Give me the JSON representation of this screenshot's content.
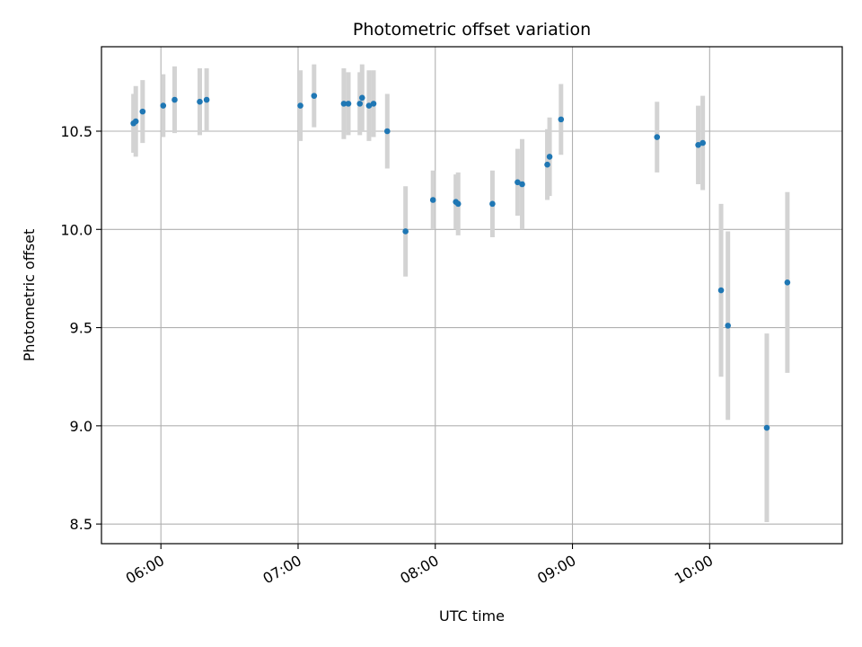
{
  "chart_data": {
    "type": "scatter",
    "title": "Photometric offset variation",
    "xlabel": "UTC time",
    "ylabel": "Photometric offset",
    "x_unit": "UTC time (HH:MM)",
    "xlim": [
      "05:34",
      "10:58"
    ],
    "ylim": [
      8.4,
      10.93
    ],
    "x_ticks": [
      "06:00",
      "07:00",
      "08:00",
      "09:00",
      "10:00"
    ],
    "y_ticks": [
      8.5,
      9.0,
      9.5,
      10.0,
      10.5
    ],
    "grid": true,
    "colors": {
      "marker": "#1f77b4",
      "errorbar": "#d3d3d3",
      "grid": "#b0b0b0"
    },
    "series": [
      {
        "points": [
          {
            "x": "05:48",
            "y": 10.54,
            "err": 0.15
          },
          {
            "x": "05:49",
            "y": 10.55,
            "err": 0.18
          },
          {
            "x": "05:52",
            "y": 10.6,
            "err": 0.16
          },
          {
            "x": "06:01",
            "y": 10.63,
            "err": 0.16
          },
          {
            "x": "06:06",
            "y": 10.66,
            "err": 0.17
          },
          {
            "x": "06:17",
            "y": 10.65,
            "err": 0.17
          },
          {
            "x": "06:20",
            "y": 10.66,
            "err": 0.16
          },
          {
            "x": "07:01",
            "y": 10.63,
            "err": 0.18
          },
          {
            "x": "07:07",
            "y": 10.68,
            "err": 0.16
          },
          {
            "x": "07:20",
            "y": 10.64,
            "err": 0.18
          },
          {
            "x": "07:22",
            "y": 10.64,
            "err": 0.16
          },
          {
            "x": "07:27",
            "y": 10.64,
            "err": 0.16
          },
          {
            "x": "07:28",
            "y": 10.67,
            "err": 0.17
          },
          {
            "x": "07:31",
            "y": 10.63,
            "err": 0.18
          },
          {
            "x": "07:33",
            "y": 10.64,
            "err": 0.17
          },
          {
            "x": "07:39",
            "y": 10.5,
            "err": 0.19
          },
          {
            "x": "07:47",
            "y": 9.99,
            "err": 0.23
          },
          {
            "x": "07:59",
            "y": 10.15,
            "err": 0.15
          },
          {
            "x": "08:09",
            "y": 10.14,
            "err": 0.14
          },
          {
            "x": "08:10",
            "y": 10.13,
            "err": 0.16
          },
          {
            "x": "08:25",
            "y": 10.13,
            "err": 0.17
          },
          {
            "x": "08:36",
            "y": 10.24,
            "err": 0.17
          },
          {
            "x": "08:38",
            "y": 10.23,
            "err": 0.23
          },
          {
            "x": "08:49",
            "y": 10.33,
            "err": 0.18
          },
          {
            "x": "08:50",
            "y": 10.37,
            "err": 0.2
          },
          {
            "x": "08:55",
            "y": 10.56,
            "err": 0.18
          },
          {
            "x": "09:37",
            "y": 10.47,
            "err": 0.18
          },
          {
            "x": "09:55",
            "y": 10.43,
            "err": 0.2
          },
          {
            "x": "09:57",
            "y": 10.44,
            "err": 0.24
          },
          {
            "x": "10:05",
            "y": 9.69,
            "err": 0.44
          },
          {
            "x": "10:08",
            "y": 9.51,
            "err": 0.48
          },
          {
            "x": "10:25",
            "y": 8.99,
            "err": 0.48
          },
          {
            "x": "10:34",
            "y": 9.73,
            "err": 0.46
          }
        ]
      }
    ]
  }
}
